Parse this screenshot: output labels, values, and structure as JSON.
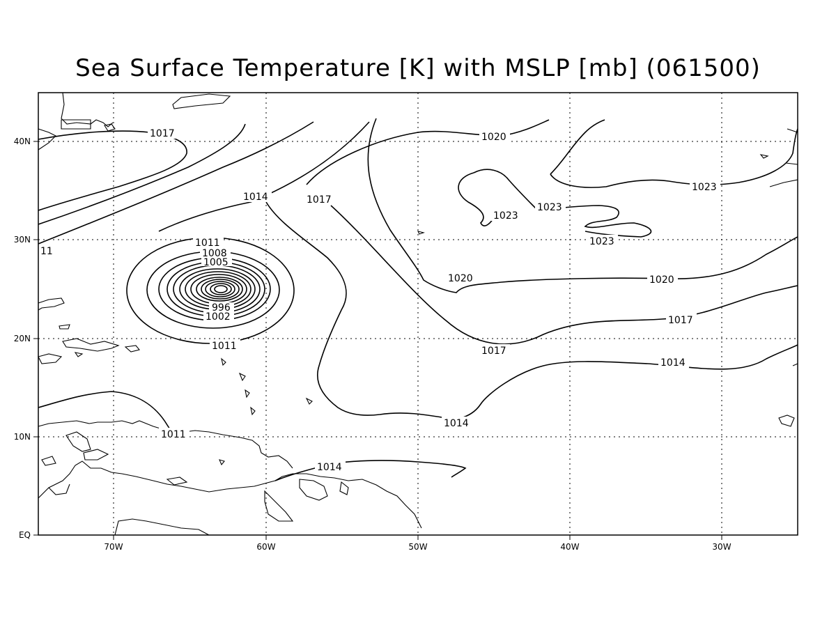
{
  "title": "Sea Surface Temperature [K] with MSLP [mb] (061500)",
  "axes": {
    "lat_labels": [
      "EQ",
      "10N",
      "20N",
      "30N",
      "40N"
    ],
    "lon_labels": [
      "70W",
      "60W",
      "50W",
      "40W",
      "30W"
    ],
    "grid": "dotted"
  },
  "contour_labels": {
    "l1017a": "1017",
    "l1014a": "1014",
    "l1017b": "1017",
    "l1020a": "1020",
    "l1023a": "1023",
    "l1023b": "1023",
    "l1023c": "1023",
    "l1023d": "1023",
    "l1020b": "1020",
    "l1020c": "1020",
    "l1017c": "1017",
    "l1017d": "1017",
    "l1014b": "1014",
    "l1014c": "1014",
    "l1011a": "1011",
    "l1011b": "1011",
    "l1011c": "1011",
    "l1008": "1008",
    "l1005": "1005",
    "l1002": "1002",
    "l996": "996",
    "l11": "11",
    "l1014d": "1014"
  }
}
